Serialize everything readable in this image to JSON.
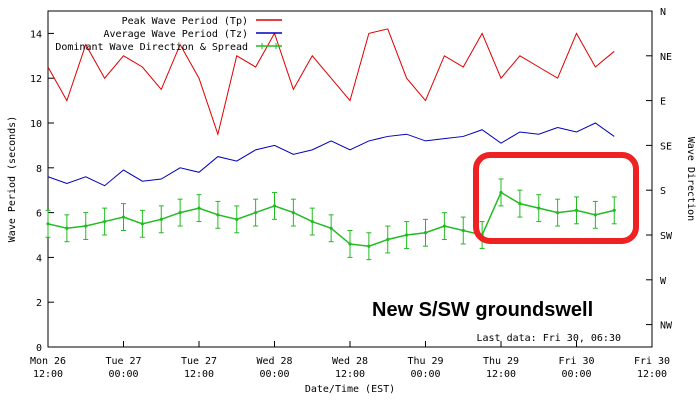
{
  "chart_data": {
    "type": "line",
    "x_ticks": [
      "Mon 26\n12:00",
      "Tue 27\n00:00",
      "Tue 27\n12:00",
      "Wed 28\n00:00",
      "Wed 28\n12:00",
      "Thu 29\n00:00",
      "Thu 29\n12:00",
      "Fri 30\n00:00",
      "Fri 30\n12:00"
    ],
    "xlabel": "Date/Time (EST)",
    "ylabel": "Wave Period (seconds)",
    "y2label": "Wave Direction",
    "ylim": [
      0,
      15
    ],
    "y_ticks": [
      "0",
      "2",
      "4",
      "6",
      "8",
      "10",
      "12",
      "14"
    ],
    "y2_ticks": [
      "NW",
      "W",
      "SW",
      "S",
      "SE",
      "E",
      "NE",
      "N"
    ],
    "grid": false,
    "legend_position": "top-center",
    "legend": [
      "Peak Wave Period (Tp)",
      "Average Wave Period (Tz)",
      "Dominant Wave Direction & Spread"
    ],
    "series": [
      {
        "name": "Peak Wave Period (Tp)",
        "color": "#dd0000",
        "x": [
          0,
          0.25,
          0.5,
          0.75,
          1,
          1.25,
          1.5,
          1.75,
          2,
          2.25,
          2.5,
          2.75,
          3,
          3.25,
          3.5,
          3.75,
          4,
          4.25,
          4.5,
          4.75,
          5,
          5.25,
          5.5,
          5.75,
          6,
          6.25,
          6.5,
          6.75,
          7,
          7.25,
          7.5
        ],
        "values": [
          12.5,
          11.0,
          13.5,
          12.0,
          13.0,
          12.5,
          11.5,
          13.5,
          12.0,
          9.5,
          13.0,
          12.5,
          14.0,
          11.5,
          13.0,
          12.0,
          11.0,
          14.0,
          14.2,
          12.0,
          11.0,
          13.0,
          12.5,
          14.0,
          12.0,
          13.0,
          12.5,
          12.0,
          14.0,
          12.5,
          13.2
        ]
      },
      {
        "name": "Average Wave Period (Tz)",
        "color": "#0000bb",
        "x": [
          0,
          0.25,
          0.5,
          0.75,
          1,
          1.25,
          1.5,
          1.75,
          2,
          2.25,
          2.5,
          2.75,
          3,
          3.25,
          3.5,
          3.75,
          4,
          4.25,
          4.5,
          4.75,
          5,
          5.25,
          5.5,
          5.75,
          6,
          6.25,
          6.5,
          6.75,
          7,
          7.25,
          7.5
        ],
        "values": [
          7.6,
          7.3,
          7.6,
          7.2,
          7.9,
          7.4,
          7.5,
          8.0,
          7.8,
          8.5,
          8.3,
          8.8,
          9.0,
          8.6,
          8.8,
          9.2,
          8.8,
          9.2,
          9.4,
          9.5,
          9.2,
          9.3,
          9.4,
          9.7,
          9.1,
          9.6,
          9.5,
          9.8,
          9.6,
          10.0,
          9.4
        ]
      },
      {
        "name": "Dominant Wave Direction & Spread",
        "color": "#22bb22",
        "x": [
          0,
          0.25,
          0.5,
          0.75,
          1,
          1.25,
          1.5,
          1.75,
          2,
          2.25,
          2.5,
          2.75,
          3,
          3.25,
          3.5,
          3.75,
          4,
          4.25,
          4.5,
          4.75,
          5,
          5.25,
          5.5,
          5.75,
          6,
          6.25,
          6.5,
          6.75,
          7,
          7.25,
          7.5
        ],
        "values": [
          5.5,
          5.3,
          5.4,
          5.6,
          5.8,
          5.5,
          5.7,
          6.0,
          6.2,
          5.9,
          5.7,
          6.0,
          6.3,
          6.0,
          5.6,
          5.3,
          4.6,
          4.5,
          4.8,
          5.0,
          5.1,
          5.4,
          5.2,
          5.0,
          6.9,
          6.4,
          6.2,
          6.0,
          6.1,
          5.9,
          6.1
        ],
        "spread": 0.6
      }
    ],
    "annotation": {
      "text": "New S/SW groundswell",
      "color": "#ee2222"
    },
    "footer_text": "Last data: Fri 30, 06:30"
  }
}
